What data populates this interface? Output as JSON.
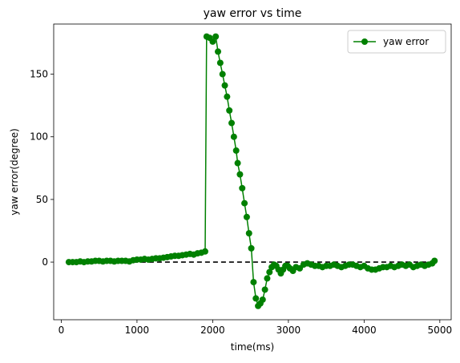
{
  "chart_data": {
    "type": "line",
    "title": "yaw error vs time",
    "xlabel": "time(ms)",
    "ylabel": "yaw error(degree)",
    "xlim": [
      -100,
      5150
    ],
    "ylim": [
      -46,
      190
    ],
    "xticks": [
      0,
      1000,
      2000,
      3000,
      4000,
      5000
    ],
    "yticks": [
      0,
      50,
      100,
      150
    ],
    "grid": false,
    "legend_position": "upper right",
    "colors": {
      "series": "#008000",
      "reference": "#000000"
    },
    "reference_line": {
      "y": 0,
      "x": [
        100,
        4950
      ],
      "style": "dashed"
    },
    "series": [
      {
        "name": "yaw error",
        "x": [
          100,
          150,
          200,
          250,
          300,
          350,
          400,
          450,
          500,
          550,
          600,
          650,
          700,
          750,
          800,
          850,
          900,
          950,
          1000,
          1050,
          1100,
          1150,
          1200,
          1250,
          1300,
          1350,
          1400,
          1450,
          1500,
          1550,
          1600,
          1650,
          1700,
          1750,
          1800,
          1850,
          1900,
          1920,
          1960,
          2000,
          2040,
          2070,
          2100,
          2130,
          2160,
          2190,
          2220,
          2250,
          2280,
          2310,
          2330,
          2360,
          2390,
          2420,
          2450,
          2480,
          2510,
          2540,
          2570,
          2600,
          2630,
          2660,
          2690,
          2720,
          2750,
          2780,
          2810,
          2840,
          2870,
          2900,
          2930,
          2960,
          2990,
          3020,
          3060,
          3100,
          3150,
          3200,
          3250,
          3300,
          3350,
          3400,
          3450,
          3500,
          3550,
          3600,
          3650,
          3700,
          3750,
          3800,
          3850,
          3900,
          3950,
          4000,
          4050,
          4100,
          4150,
          4200,
          4250,
          4300,
          4350,
          4400,
          4450,
          4500,
          4550,
          4600,
          4650,
          4700,
          4750,
          4800,
          4850,
          4900,
          4930
        ],
        "y": [
          0,
          0,
          0,
          0.5,
          0,
          0.5,
          0.5,
          1,
          1,
          0.5,
          1,
          1,
          0.5,
          1,
          1,
          1,
          0.5,
          1.5,
          2,
          2,
          2.5,
          2,
          2.5,
          3,
          3,
          3.5,
          4,
          4.5,
          5,
          5,
          5.5,
          6,
          6.5,
          6,
          7,
          7.5,
          8.5,
          180,
          179,
          176,
          180,
          168,
          159,
          150,
          141,
          132,
          121,
          111,
          100,
          89,
          79,
          70,
          59,
          47,
          36,
          23,
          11,
          -16,
          -29,
          -35,
          -33,
          -30,
          -22,
          -13,
          -8,
          -4,
          -2,
          -3,
          -6,
          -9,
          -6,
          -3,
          -3,
          -5,
          -7,
          -4,
          -5,
          -2,
          -1,
          -2,
          -3,
          -3,
          -4,
          -3,
          -3,
          -2,
          -3,
          -4,
          -3,
          -2,
          -2,
          -3,
          -4,
          -3,
          -5,
          -6,
          -6,
          -5,
          -4,
          -4,
          -3,
          -4,
          -3,
          -2,
          -3,
          -2,
          -4,
          -3,
          -2,
          -3,
          -2,
          -1,
          1
        ]
      }
    ]
  }
}
